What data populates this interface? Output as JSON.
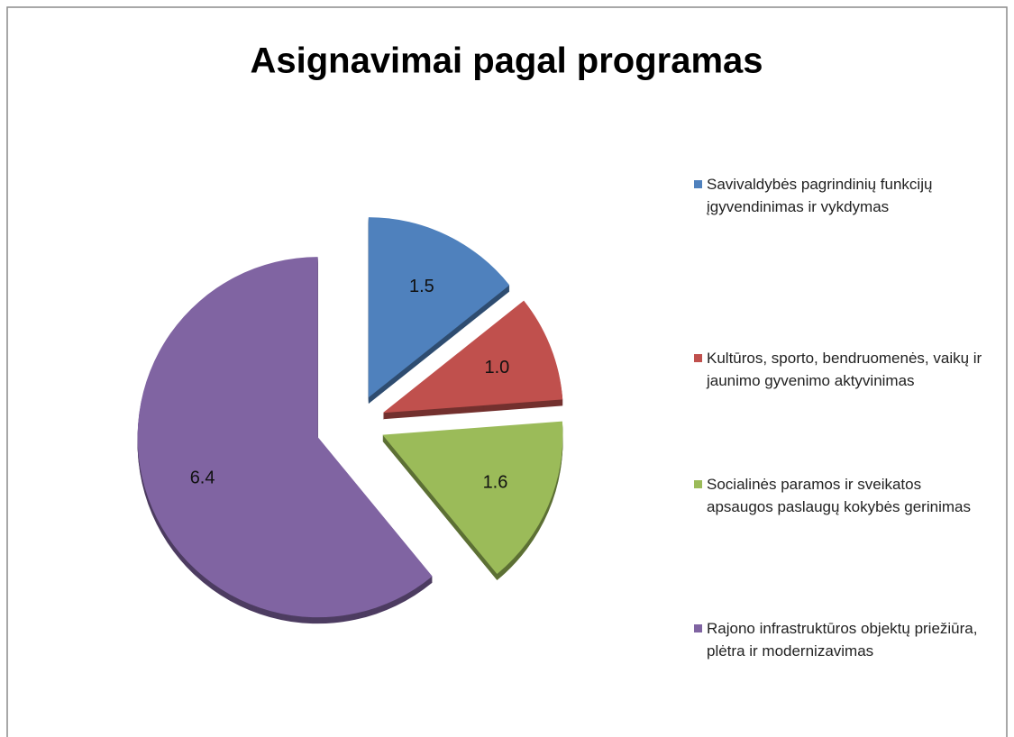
{
  "chart_data": {
    "type": "pie",
    "title": "Asignavimai pagal programas",
    "categories": [
      "Savivaldybės pagrindinių funkcijų įgyvendinimas ir vykdymas",
      "Kultūros, sporto, bendruomenės, vaikų ir jaunimo gyvenimo aktyvinimas",
      "Socialinės paramos ir sveikatos apsaugos paslaugų kokybės gerinimas",
      "Rajono infrastruktūros objektų priežiūra, plėtra ir modernizavimas"
    ],
    "values": [
      1.5,
      1.0,
      1.6,
      6.4
    ],
    "value_labels": [
      "1.5",
      "1.0",
      "1.6",
      "6.4"
    ],
    "colors": [
      "#4f81bd",
      "#c0504d",
      "#9bbb59",
      "#8064a2"
    ]
  }
}
